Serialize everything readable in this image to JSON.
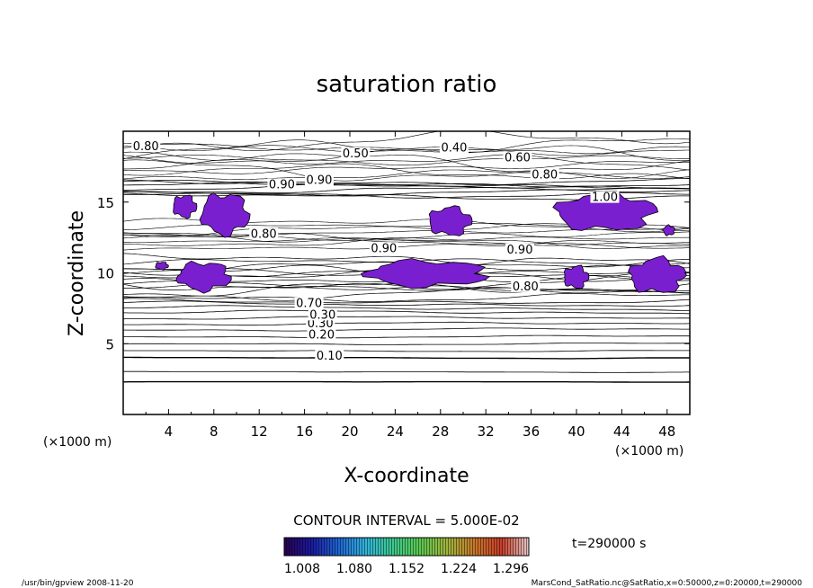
{
  "chart_data": {
    "type": "contour",
    "title": "saturation ratio",
    "xlabel": "X-coordinate",
    "ylabel": "Z-coordinate",
    "x_unit": "(×1000 m)",
    "y_unit": "(×1000 m)",
    "xlim": [
      0,
      50
    ],
    "ylim": [
      0,
      20
    ],
    "x_ticks": [
      4,
      8,
      12,
      16,
      20,
      24,
      28,
      32,
      36,
      40,
      44,
      48
    ],
    "y_ticks": [
      5,
      10,
      15
    ],
    "contour_interval_text": "CONTOUR INTERVAL = 5.000E-02",
    "time_label": "t=290000 s",
    "contour_labels": [
      {
        "text": "0.10",
        "x": 18.2,
        "z": 4.0
      },
      {
        "text": "0.20",
        "x": 17.5,
        "z": 5.5
      },
      {
        "text": "0.30",
        "x": 17.4,
        "z": 6.3
      },
      {
        "text": "0.30",
        "x": 17.6,
        "z": 6.9
      },
      {
        "text": "0.70",
        "x": 16.4,
        "z": 7.7
      },
      {
        "text": "0.80",
        "x": 12.4,
        "z": 12.6
      },
      {
        "text": "0.90",
        "x": 23.0,
        "z": 11.6
      },
      {
        "text": "0.90",
        "x": 35.0,
        "z": 11.5
      },
      {
        "text": "0.80",
        "x": 35.5,
        "z": 8.9
      },
      {
        "text": "0.80",
        "x": 2.0,
        "z": 18.8
      },
      {
        "text": "0.50",
        "x": 20.5,
        "z": 18.3
      },
      {
        "text": "0.40",
        "x": 29.2,
        "z": 18.7
      },
      {
        "text": "0.60",
        "x": 34.8,
        "z": 18.0
      },
      {
        "text": "0.80",
        "x": 37.2,
        "z": 16.8
      },
      {
        "text": "0.90",
        "x": 14.0,
        "z": 16.1
      },
      {
        "text": "0.90",
        "x": 17.3,
        "z": 16.4
      },
      {
        "text": "1.00",
        "x": 42.5,
        "z": 15.2
      }
    ],
    "colorbar": {
      "ticks": [
        "1.008",
        "1.080",
        "1.152",
        "1.224",
        "1.296"
      ],
      "range": [
        1.008,
        1.296
      ],
      "colors": [
        "#2a0050",
        "#1a1aa0",
        "#1e64d2",
        "#32b4dc",
        "#3cc88c",
        "#5ac850",
        "#a0b43c",
        "#c87828",
        "#c83c28",
        "#e6c8c8"
      ]
    },
    "supersaturated_regions": [
      {
        "x": [
          6.7,
          11.2
        ],
        "z": [
          12.5,
          15.8
        ]
      },
      {
        "x": [
          4.3,
          6.5
        ],
        "z": [
          13.8,
          15.6
        ]
      },
      {
        "x": [
          26.8,
          30.8
        ],
        "z": [
          12.5,
          14.8
        ]
      },
      {
        "x": [
          37.8,
          47.2
        ],
        "z": [
          12.8,
          15.8
        ]
      },
      {
        "x": [
          47.6,
          48.7
        ],
        "z": [
          12.6,
          13.4
        ]
      },
      {
        "x": [
          21.0,
          32.5
        ],
        "z": [
          8.9,
          11.0
        ]
      },
      {
        "x": [
          4.6,
          9.6
        ],
        "z": [
          8.6,
          10.9
        ]
      },
      {
        "x": [
          2.8,
          4.0
        ],
        "z": [
          10.2,
          10.8
        ]
      },
      {
        "x": [
          38.8,
          41.1
        ],
        "z": [
          8.8,
          10.6
        ]
      },
      {
        "x": [
          44.5,
          49.7
        ],
        "z": [
          8.4,
          11.2
        ]
      }
    ]
  },
  "footer": {
    "left": "/usr/bin/gpview   2008-11-20",
    "right": "MarsCond_SatRatio.nc@SatRatio,x=0:50000,z=0:20000,t=290000"
  }
}
